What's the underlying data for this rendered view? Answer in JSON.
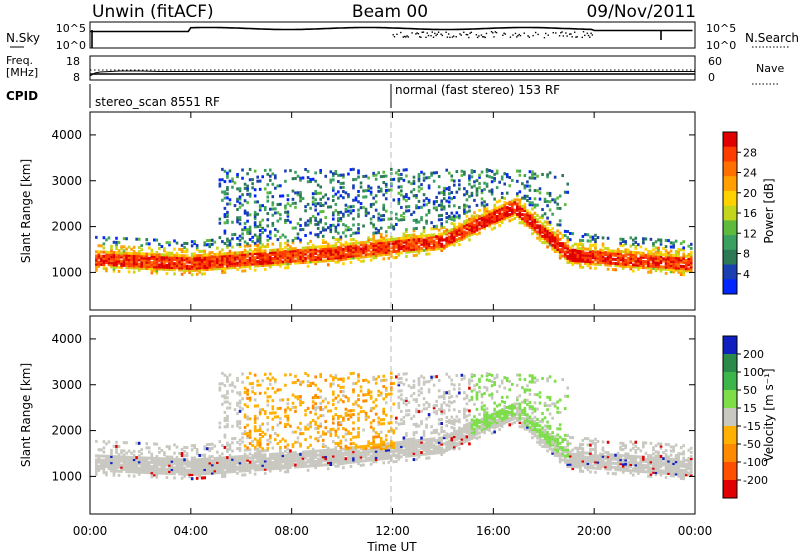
{
  "header": {
    "station": "Unwin (fitACF)",
    "beam": "Beam 00",
    "date": "09/Nov/2011"
  },
  "noise_panel": {
    "left_label": "N.Sky",
    "left_ticks": [
      "10^5",
      "10^0"
    ],
    "right_ticks": [
      "10^5",
      "10^0"
    ],
    "right_label": "N.Search"
  },
  "freq_panel": {
    "left_label_line1": "Freq.",
    "left_label_line2": "[MHz]",
    "left_ticks": [
      "18",
      "8"
    ],
    "right_ticks": [
      "60",
      "0"
    ],
    "right_label": "Nave"
  },
  "cpid_panel": {
    "label": "CPID",
    "segments": [
      {
        "text": "stereo_scan 8551 RF",
        "start_hour": 0,
        "end_hour": 12
      },
      {
        "text": "normal (fast stereo) 153 RF",
        "start_hour": 12,
        "end_hour": 24
      }
    ]
  },
  "x_axis": {
    "label": "Time UT",
    "range_hours": [
      0,
      24
    ],
    "ticks": [
      {
        "hour": 0,
        "label": "00:00"
      },
      {
        "hour": 4,
        "label": "04:00"
      },
      {
        "hour": 8,
        "label": "08:00"
      },
      {
        "hour": 12,
        "label": "12:00"
      },
      {
        "hour": 16,
        "label": "16:00"
      },
      {
        "hour": 20,
        "label": "20:00"
      },
      {
        "hour": 24,
        "label": "00:00"
      }
    ]
  },
  "chart_data": [
    {
      "type": "heatmap",
      "name": "power",
      "ylabel": "Slant Range [km]",
      "ylim": [
        180,
        4500
      ],
      "yticks": [
        1000,
        2000,
        3000,
        4000
      ],
      "colorbar": {
        "label": "Power [dB]",
        "ticks": [
          "4",
          "8",
          "12",
          "16",
          "20",
          "24",
          "28"
        ],
        "colors": [
          "#0026ff",
          "#1a3fb0",
          "#2b7a55",
          "#3aa060",
          "#5dba3c",
          "#c4d61c",
          "#ffd200",
          "#ffa000",
          "#ff7000",
          "#ff3c00",
          "#e00000"
        ]
      }
    },
    {
      "type": "heatmap",
      "name": "velocity",
      "ylabel": "Slant Range [km]",
      "ylim": [
        180,
        4500
      ],
      "yticks": [
        1000,
        2000,
        3000,
        4000
      ],
      "colorbar": {
        "label": "Velocity [m s⁻¹]",
        "ticks": [
          "200",
          "100",
          "50",
          "15",
          "-15",
          "-50",
          "-100",
          "-200"
        ],
        "colors": [
          "#1020c0",
          "#2a8a4a",
          "#3cb54a",
          "#7dde4a",
          "#c8c8c0",
          "#ffb000",
          "#ff8a00",
          "#ff5000",
          "#e00000"
        ]
      }
    }
  ]
}
